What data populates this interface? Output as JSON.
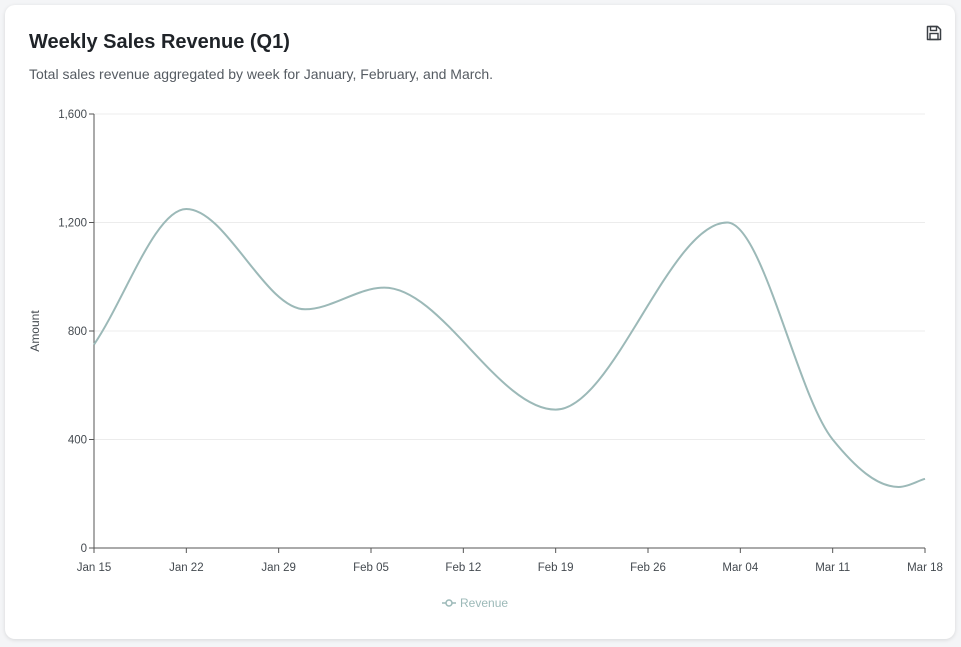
{
  "header": {
    "title": "Weekly Sales Revenue (Q1)",
    "subtitle": "Total sales revenue aggregated by week for January, February, and March."
  },
  "toolbar": {
    "save_icon": "floppy-disk-icon"
  },
  "colors": {
    "series": "#9cb9b8",
    "axis": "#555555",
    "grid": "#ececec"
  },
  "chart_data": {
    "type": "line",
    "title": "Weekly Sales Revenue (Q1)",
    "subtitle": "Total sales revenue aggregated by week for January, February, and March.",
    "xlabel": "",
    "ylabel": "Amount",
    "x_type": "date",
    "ylim": [
      0,
      1600
    ],
    "yticks": [
      0,
      400,
      800,
      1200,
      1600
    ],
    "ytick_labels": [
      "0",
      "400",
      "800",
      "1,200",
      "1,600"
    ],
    "xticks": [
      "Jan 15",
      "Jan 22",
      "Jan 29",
      "Feb 05",
      "Feb 12",
      "Feb 19",
      "Feb 26",
      "Mar 04",
      "Mar 11",
      "Mar 18"
    ],
    "xlim": [
      "2024-01-15",
      "2024-03-18"
    ],
    "grid": "horizontal",
    "legend": "bottom-center",
    "curve": "smooth",
    "series": [
      {
        "name": "Revenue",
        "points": [
          {
            "date": "2024-01-15",
            "value": 750
          },
          {
            "date": "2024-01-22",
            "value": 1250
          },
          {
            "date": "2024-01-31",
            "value": 880
          },
          {
            "date": "2024-02-06",
            "value": 960
          },
          {
            "date": "2024-02-19",
            "value": 510
          },
          {
            "date": "2024-03-03",
            "value": 1200
          },
          {
            "date": "2024-03-11",
            "value": 400
          },
          {
            "date": "2024-03-16",
            "value": 225
          },
          {
            "date": "2024-03-18",
            "value": 255
          }
        ]
      }
    ]
  }
}
